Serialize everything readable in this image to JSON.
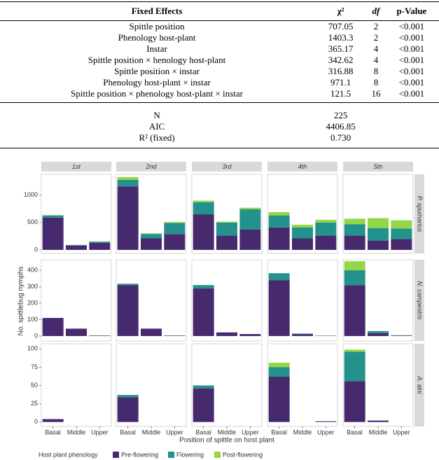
{
  "table": {
    "header": [
      "Fixed Effects",
      "χ²",
      "df",
      "p-Value"
    ],
    "rows": [
      [
        "Spittle position",
        "707.05",
        "2",
        "<0.001"
      ],
      [
        "Phenology host-plant",
        "1403.3",
        "2",
        "<0.001"
      ],
      [
        "Instar",
        "365.17",
        "4",
        "<0.001"
      ],
      [
        "Spittle position × henology host-plant",
        "342.62",
        "4",
        "<0.001"
      ],
      [
        "Spittle position × instar",
        "316.88",
        "8",
        "<0.001"
      ],
      [
        "Phenology host-plant × instar",
        "971.1",
        "8",
        "<0.001"
      ],
      [
        "Spittle position × phenology host-plant × instar",
        "121.5",
        "16",
        "<0.001"
      ]
    ],
    "stats": [
      [
        "N",
        "225"
      ],
      [
        "AIC",
        "4406.85"
      ],
      [
        "R² (fixed)",
        "0.730"
      ]
    ]
  },
  "chart_data": {
    "type": "bar",
    "stacked": true,
    "x_label": "Position of spittle on host plant",
    "y_label": "No. spittlebug nymphs",
    "legend_title": "Host plant phenology",
    "categories": [
      "Basal",
      "Middle",
      "Upper"
    ],
    "facet_columns": [
      "1st",
      "2nd",
      "3rd",
      "4th",
      "5th"
    ],
    "facet_rows": [
      {
        "label": "P. spumarius",
        "ylim": [
          -65,
          1380
        ],
        "yticks": [
          0,
          500,
          1000
        ]
      },
      {
        "label": "N. campestris",
        "ylim": [
          -30,
          464
        ],
        "yticks": [
          0,
          100,
          200,
          300,
          400
        ]
      },
      {
        "label": "A. alni",
        "ylim": [
          -6,
          107
        ],
        "yticks": [
          0,
          25,
          50,
          75,
          100
        ]
      }
    ],
    "series": [
      {
        "name": "Pre-flowering",
        "color": "#472a6e",
        "values": [
          [
            [
              590,
              80,
              130
            ],
            [
              1160,
              210,
              290
            ],
            [
              650,
              260,
              370
            ],
            [
              410,
              210,
              260
            ],
            [
              260,
              170,
              200
            ]
          ],
          [
            [
              110,
              45,
              3
            ],
            [
              310,
              45,
              3
            ],
            [
              290,
              22,
              12
            ],
            [
              340,
              12,
              2
            ],
            [
              310,
              18,
              3
            ]
          ],
          [
            [
              4,
              0,
              0
            ],
            [
              34,
              0,
              0
            ],
            [
              46,
              0,
              0
            ],
            [
              62,
              0,
              1
            ],
            [
              56,
              2,
              0
            ]
          ]
        ]
      },
      {
        "name": "Flowering",
        "color": "#23918c",
        "values": [
          [
            [
              40,
              10,
              20
            ],
            [
              120,
              80,
              200
            ],
            [
              220,
              240,
              370
            ],
            [
              220,
              200,
              240
            ],
            [
              210,
              230,
              190
            ]
          ],
          [
            [
              0,
              0,
              0
            ],
            [
              8,
              0,
              0
            ],
            [
              20,
              0,
              0
            ],
            [
              42,
              3,
              0
            ],
            [
              90,
              12,
              2
            ]
          ],
          [
            [
              0,
              0,
              0
            ],
            [
              3,
              0,
              0
            ],
            [
              4,
              0,
              0
            ],
            [
              13,
              0,
              0
            ],
            [
              40,
              0,
              0
            ]
          ]
        ]
      },
      {
        "name": "Post-flowering",
        "color": "#93d646",
        "values": [
          [
            [
              5,
              0,
              5
            ],
            [
              50,
              15,
              20
            ],
            [
              30,
              15,
              30
            ],
            [
              60,
              50,
              50
            ],
            [
              100,
              180,
              150
            ]
          ],
          [
            [
              0,
              0,
              0
            ],
            [
              0,
              0,
              0
            ],
            [
              0,
              0,
              0
            ],
            [
              0,
              0,
              0
            ],
            [
              55,
              0,
              0
            ]
          ],
          [
            [
              0,
              0,
              0
            ],
            [
              0,
              0,
              0
            ],
            [
              0,
              0,
              0
            ],
            [
              6,
              0,
              0
            ],
            [
              3,
              0,
              0
            ]
          ]
        ]
      }
    ]
  }
}
